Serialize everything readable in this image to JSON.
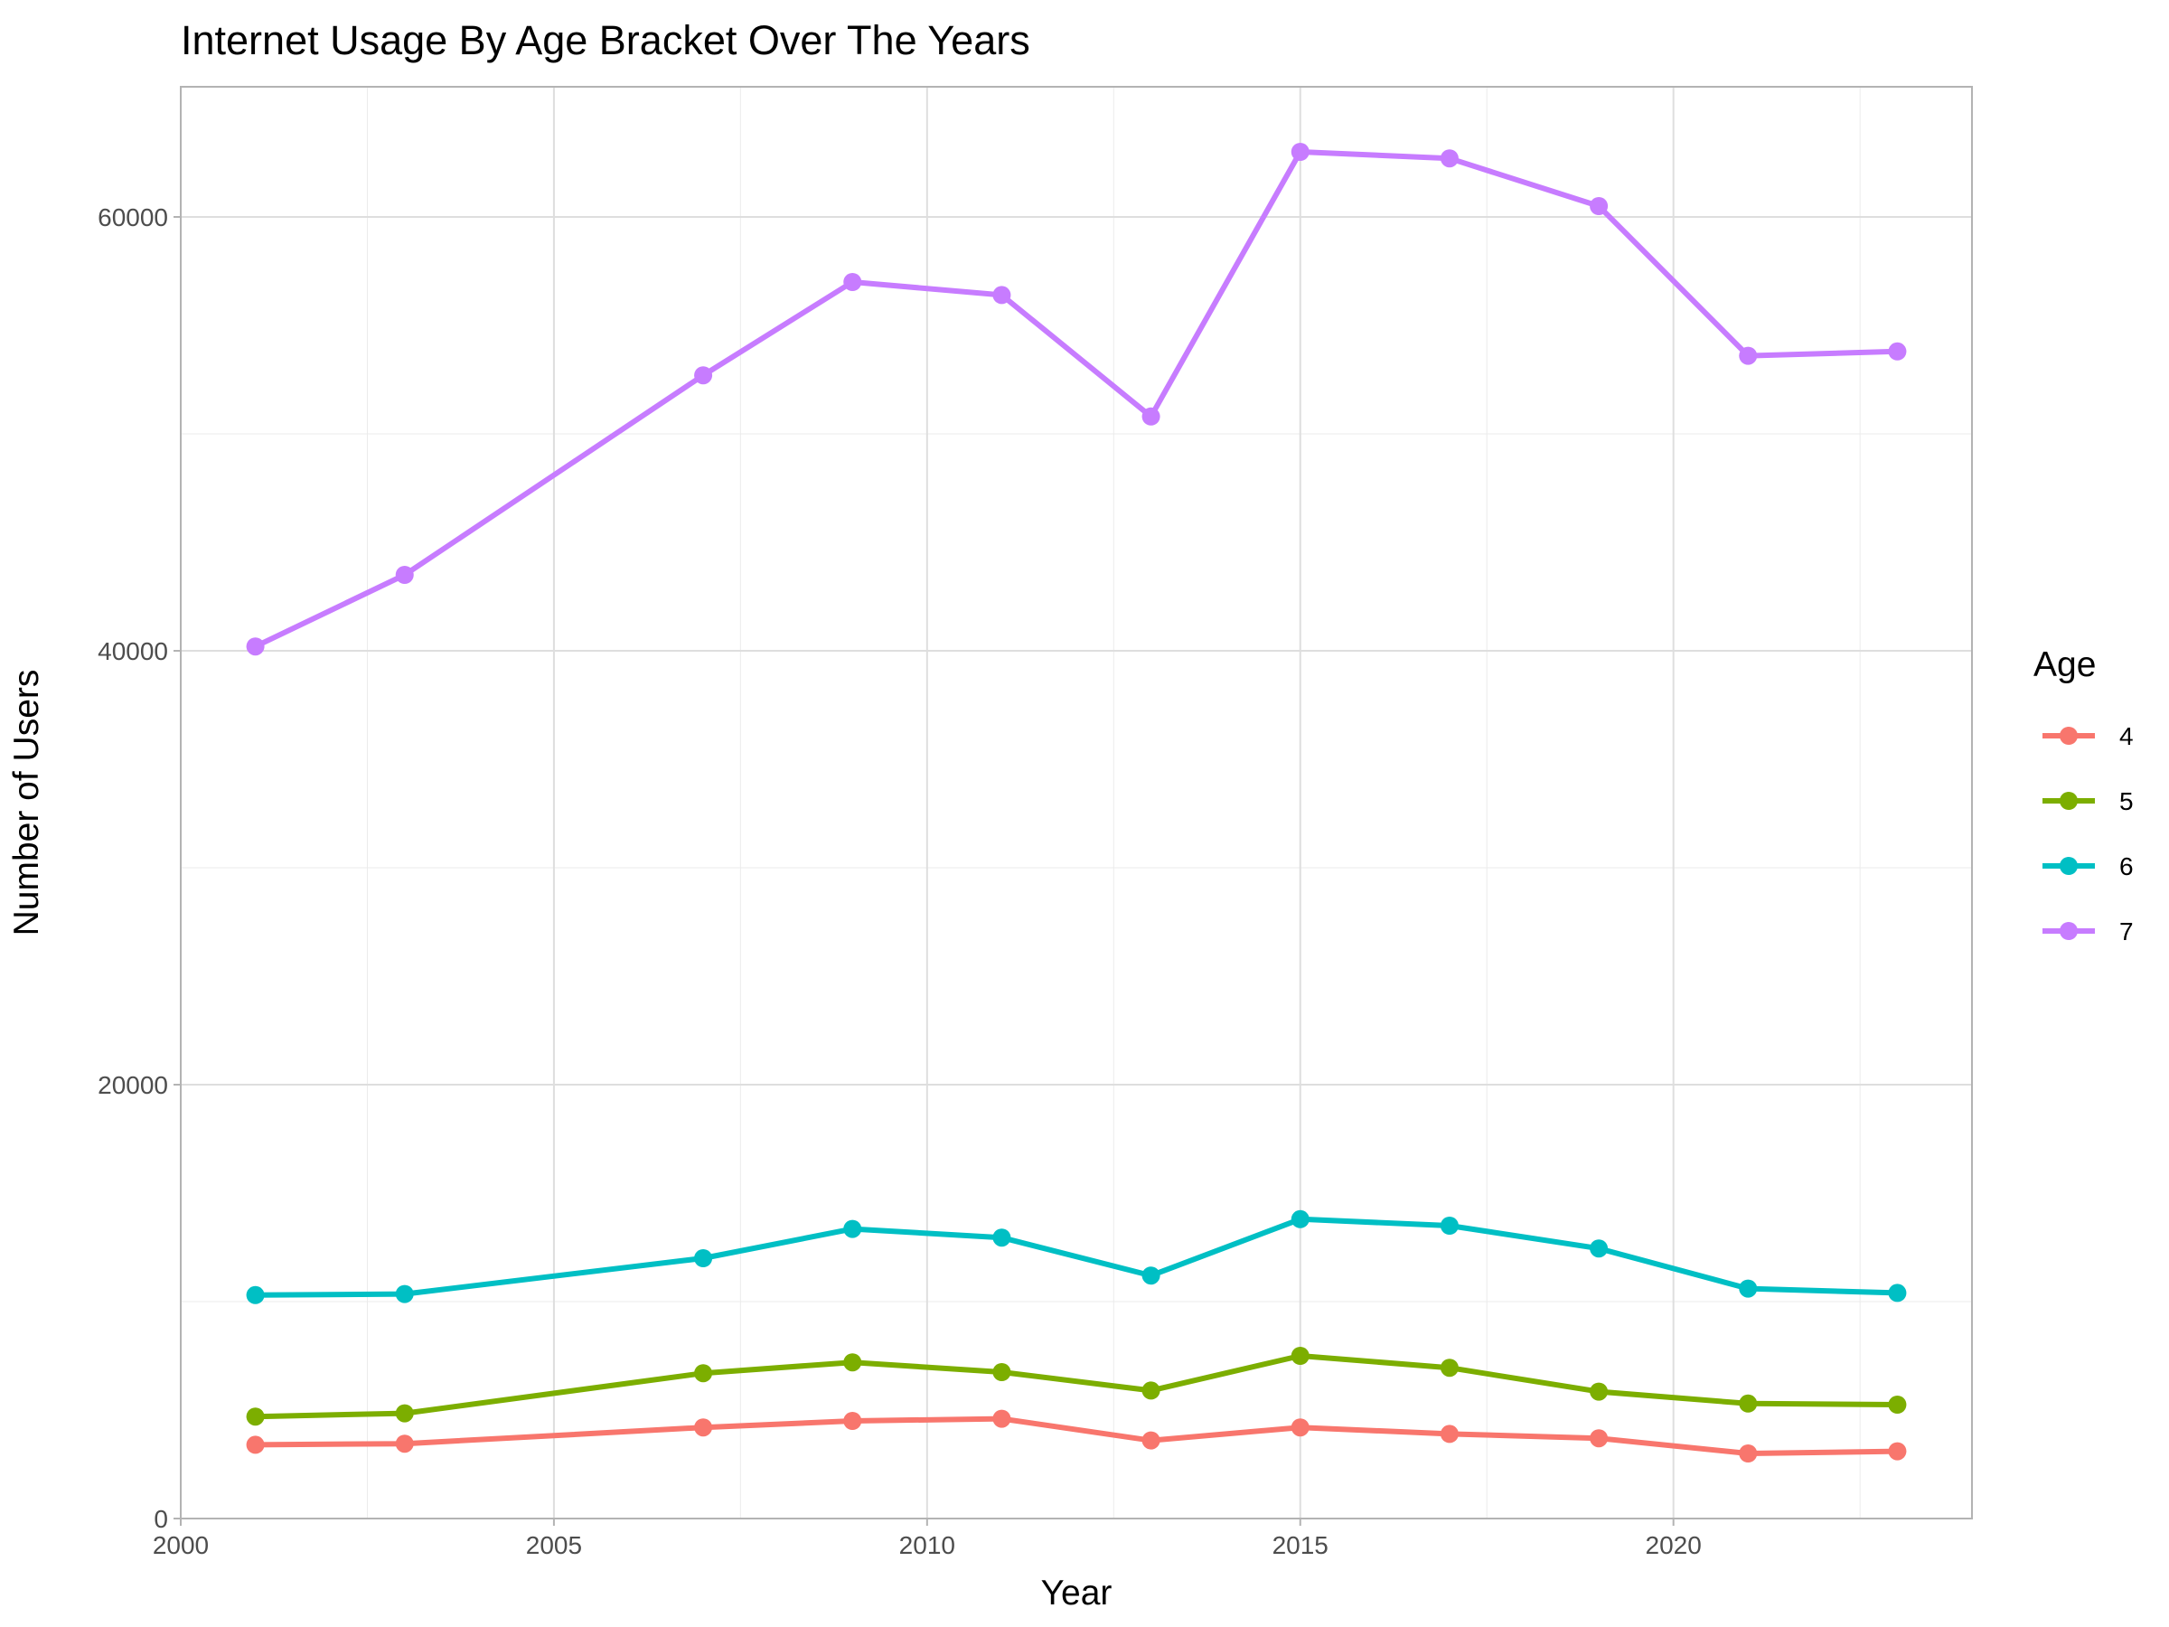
{
  "chart_data": {
    "type": "line",
    "title": "Internet Usage By Age Bracket Over The Years",
    "xlabel": "Year",
    "ylabel": "Number of Users",
    "xlim": [
      2000,
      2024
    ],
    "ylim": [
      0,
      66000
    ],
    "x_ticks": [
      "2000",
      "2005",
      "2010",
      "2015",
      "2020"
    ],
    "y_ticks": [
      "0",
      "20000",
      "40000",
      "60000"
    ],
    "grid": true,
    "legend": {
      "title": "Age",
      "placement": "right"
    },
    "x": [
      2001,
      2003,
      2007,
      2009,
      2011,
      2013,
      2015,
      2017,
      2019,
      2021,
      2023
    ],
    "series": [
      {
        "name": "4",
        "color": "#f8766d",
        "values": [
          3400,
          3450,
          4200,
          4500,
          4600,
          3600,
          4200,
          3900,
          3700,
          3000,
          3100
        ]
      },
      {
        "name": "5",
        "color": "#7cae00",
        "values": [
          4700,
          4850,
          6700,
          7200,
          6750,
          5900,
          7500,
          6950,
          5850,
          5300,
          5250
        ]
      },
      {
        "name": "6",
        "color": "#00bfc4",
        "values": [
          10300,
          10350,
          12000,
          13350,
          12950,
          11200,
          13800,
          13500,
          12450,
          10600,
          10400
        ]
      },
      {
        "name": "7",
        "color": "#c77cff",
        "values": [
          40200,
          43500,
          52700,
          57000,
          56400,
          50800,
          63000,
          62700,
          60500,
          53600,
          53800
        ]
      }
    ]
  }
}
